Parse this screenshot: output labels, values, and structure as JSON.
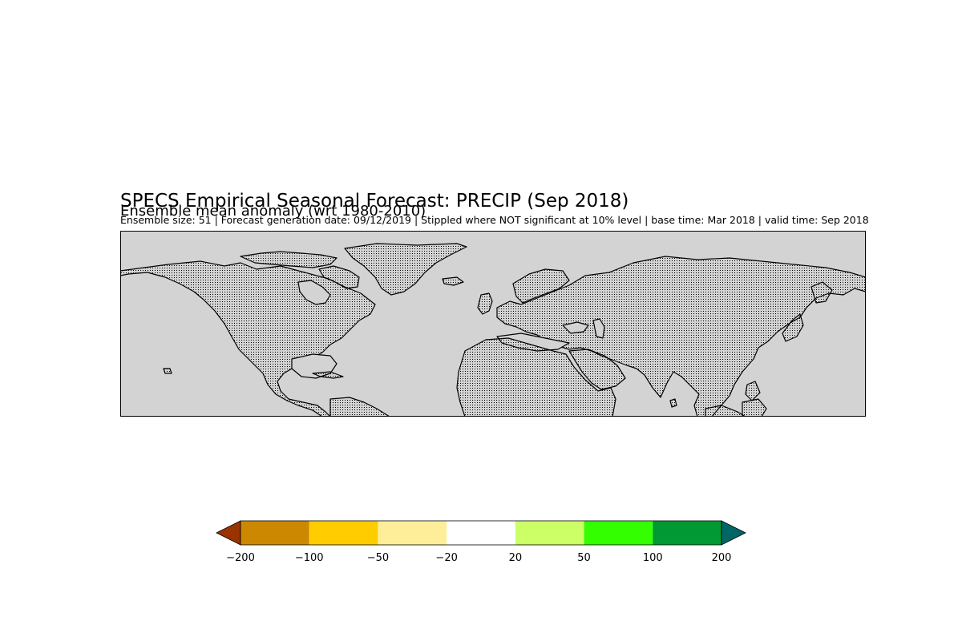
{
  "title": "SPECS Empirical Seasonal Forecast: PRECIP (Sep 2018)",
  "subtitle": "Ensemble mean anomaly (wrt 1980-2010)",
  "info": "Ensemble size: 51 | Forecast generation date: 09/12/2019 |  Stippled where NOT significant at 10% level | base time: Mar 2018 | valid time: Sep 2018",
  "map": {
    "background_color": "#d3d3d3",
    "coastline_color": "#000000",
    "stipple_color": "#000000"
  },
  "colorbar": {
    "under_color": "#993300",
    "over_color": "#006666",
    "bins": [
      {
        "from": -200,
        "to": -100,
        "color": "#cc8800"
      },
      {
        "from": -100,
        "to": -50,
        "color": "#ffcc00"
      },
      {
        "from": -50,
        "to": -20,
        "color": "#ffee99"
      },
      {
        "from": -20,
        "to": 20,
        "color": "#ffffff"
      },
      {
        "from": 20,
        "to": 50,
        "color": "#ccff66"
      },
      {
        "from": 50,
        "to": 100,
        "color": "#33ff00"
      },
      {
        "from": 100,
        "to": 200,
        "color": "#009933"
      }
    ],
    "ticks": [
      "−200",
      "−100",
      "−50",
      "−20",
      "20",
      "50",
      "100",
      "200"
    ]
  }
}
